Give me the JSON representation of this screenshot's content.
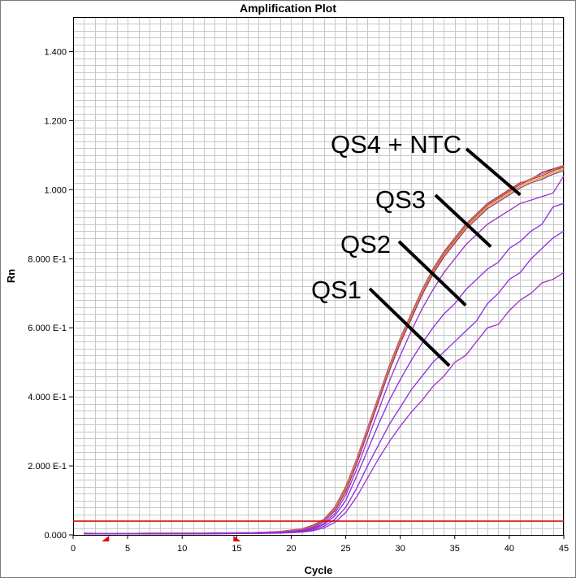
{
  "chart_data": {
    "type": "line",
    "title": "Amplification Plot",
    "xlabel": "Cycle",
    "ylabel": "Rn",
    "xlim": [
      0,
      45
    ],
    "ylim": [
      0,
      1.5
    ],
    "x_ticks": [
      0,
      5,
      10,
      15,
      20,
      25,
      30,
      35,
      40,
      45
    ],
    "x_tick_labels": [
      "0",
      "5",
      "10",
      "15",
      "20",
      "25",
      "30",
      "35",
      "40",
      "45"
    ],
    "y_ticks": [
      0,
      0.2,
      0.4,
      0.6,
      0.8,
      1.0,
      1.2,
      1.4
    ],
    "y_tick_labels": [
      "0.000",
      "2.000 E-1",
      "4.000 E-1",
      "6.000 E-1",
      "8.000 E-1",
      "1.000",
      "1.200",
      "1.400"
    ],
    "grid": true,
    "threshold": {
      "value": 0.04,
      "color": "#e60000"
    },
    "baseline_markers": {
      "start_cycle": 3,
      "end_cycle": 15,
      "color": "#e60000"
    },
    "x": [
      1,
      3,
      5,
      7,
      9,
      11,
      13,
      15,
      17,
      19,
      21,
      22,
      23,
      24,
      25,
      26,
      27,
      28,
      29,
      30,
      31,
      32,
      33,
      34,
      35,
      36,
      37,
      38,
      39,
      40,
      41,
      42,
      43,
      44,
      45
    ],
    "series": [
      {
        "color": "#8b1e6e",
        "values": [
          0.005,
          0.004,
          0.004,
          0.005,
          0.005,
          0.005,
          0.006,
          0.006,
          0.007,
          0.01,
          0.018,
          0.028,
          0.045,
          0.08,
          0.14,
          0.22,
          0.31,
          0.4,
          0.49,
          0.57,
          0.64,
          0.71,
          0.77,
          0.82,
          0.86,
          0.9,
          0.93,
          0.96,
          0.98,
          1.0,
          1.02,
          1.03,
          1.05,
          1.06,
          1.07
        ]
      },
      {
        "color": "#c0392b",
        "values": [
          0.004,
          0.004,
          0.004,
          0.004,
          0.005,
          0.005,
          0.005,
          0.006,
          0.007,
          0.009,
          0.016,
          0.025,
          0.042,
          0.076,
          0.135,
          0.215,
          0.305,
          0.395,
          0.485,
          0.565,
          0.635,
          0.705,
          0.765,
          0.815,
          0.855,
          0.895,
          0.925,
          0.955,
          0.975,
          0.995,
          1.015,
          1.03,
          1.04,
          1.055,
          1.065
        ]
      },
      {
        "color": "#d4a020",
        "values": [
          0.004,
          0.004,
          0.004,
          0.005,
          0.005,
          0.005,
          0.005,
          0.006,
          0.007,
          0.009,
          0.015,
          0.024,
          0.04,
          0.073,
          0.13,
          0.21,
          0.3,
          0.39,
          0.48,
          0.56,
          0.63,
          0.7,
          0.76,
          0.81,
          0.85,
          0.89,
          0.92,
          0.95,
          0.97,
          0.99,
          1.01,
          1.025,
          1.035,
          1.05,
          1.06
        ]
      },
      {
        "color": "#a0327a",
        "values": [
          0.004,
          0.004,
          0.004,
          0.004,
          0.004,
          0.005,
          0.005,
          0.006,
          0.007,
          0.009,
          0.015,
          0.023,
          0.039,
          0.07,
          0.125,
          0.205,
          0.295,
          0.385,
          0.475,
          0.555,
          0.625,
          0.695,
          0.755,
          0.805,
          0.845,
          0.885,
          0.915,
          0.945,
          0.965,
          0.985,
          1.005,
          1.02,
          1.03,
          1.045,
          1.055
        ]
      },
      {
        "color": "#d46a6a",
        "values": [
          0.005,
          0.004,
          0.004,
          0.005,
          0.005,
          0.005,
          0.006,
          0.006,
          0.007,
          0.01,
          0.017,
          0.026,
          0.043,
          0.078,
          0.138,
          0.218,
          0.308,
          0.398,
          0.488,
          0.568,
          0.638,
          0.708,
          0.768,
          0.818,
          0.858,
          0.898,
          0.928,
          0.958,
          0.978,
          0.998,
          1.018,
          1.032,
          1.045,
          1.058,
          1.068
        ]
      },
      {
        "color": "#9b30c8",
        "values": [
          0.004,
          0.004,
          0.004,
          0.004,
          0.004,
          0.004,
          0.005,
          0.005,
          0.006,
          0.008,
          0.013,
          0.02,
          0.034,
          0.062,
          0.115,
          0.19,
          0.275,
          0.36,
          0.445,
          0.52,
          0.59,
          0.655,
          0.71,
          0.76,
          0.8,
          0.84,
          0.87,
          0.9,
          0.92,
          0.94,
          0.96,
          0.97,
          0.98,
          0.99,
          1.04
        ]
      },
      {
        "color": "#8a2be2",
        "values": [
          0.004,
          0.004,
          0.004,
          0.004,
          0.004,
          0.004,
          0.005,
          0.005,
          0.006,
          0.007,
          0.012,
          0.018,
          0.03,
          0.055,
          0.1,
          0.17,
          0.245,
          0.32,
          0.39,
          0.45,
          0.505,
          0.555,
          0.6,
          0.64,
          0.67,
          0.71,
          0.74,
          0.77,
          0.79,
          0.83,
          0.85,
          0.88,
          0.9,
          0.95,
          0.96
        ]
      },
      {
        "color": "#8a2be2",
        "values": [
          0.003,
          0.003,
          0.003,
          0.003,
          0.003,
          0.003,
          0.004,
          0.004,
          0.005,
          0.006,
          0.01,
          0.015,
          0.025,
          0.045,
          0.08,
          0.135,
          0.2,
          0.26,
          0.32,
          0.37,
          0.42,
          0.46,
          0.5,
          0.53,
          0.56,
          0.59,
          0.62,
          0.67,
          0.7,
          0.74,
          0.76,
          0.8,
          0.83,
          0.86,
          0.88
        ]
      },
      {
        "color": "#9932cc",
        "values": [
          0.003,
          0.003,
          0.003,
          0.003,
          0.003,
          0.003,
          0.003,
          0.004,
          0.004,
          0.005,
          0.008,
          0.012,
          0.02,
          0.036,
          0.065,
          0.11,
          0.165,
          0.22,
          0.27,
          0.315,
          0.355,
          0.39,
          0.43,
          0.46,
          0.5,
          0.52,
          0.56,
          0.6,
          0.61,
          0.65,
          0.68,
          0.7,
          0.73,
          0.74,
          0.76
        ]
      }
    ],
    "annotations": [
      {
        "text": "QS4 + NTC",
        "line_to": [
          41,
          0.985
        ]
      },
      {
        "text": "QS3",
        "line_to": [
          38.3,
          0.835
        ]
      },
      {
        "text": "QS2",
        "line_to": [
          36,
          0.665
        ]
      },
      {
        "text": "QS1",
        "line_to": [
          34.5,
          0.49
        ]
      }
    ]
  }
}
